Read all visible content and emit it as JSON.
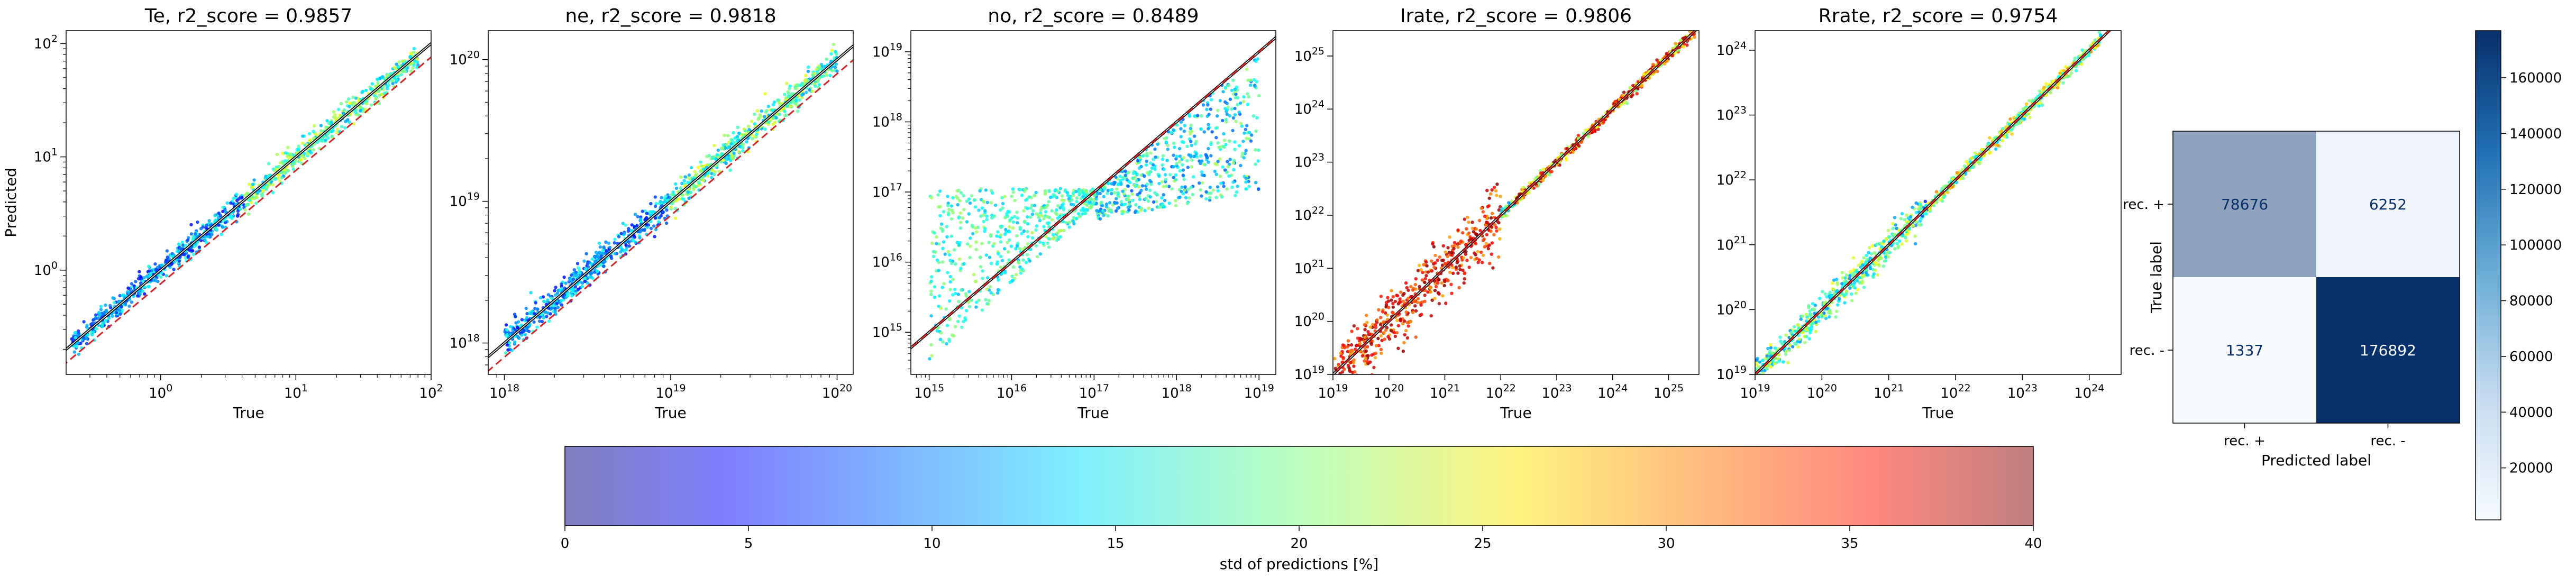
{
  "chart_data": [
    {
      "type": "scatter",
      "title": "Te, r2_score = 0.9857",
      "xlabel": "True",
      "ylabel": "Predicted",
      "xscale": "log",
      "yscale": "log",
      "xlim": [
        0.2,
        100
      ],
      "ylim": [
        0.12,
        130
      ],
      "xticks": [
        {
          "v": 1,
          "b": "10",
          "e": "0"
        },
        {
          "v": 10,
          "b": "10",
          "e": "1"
        },
        {
          "v": 100,
          "b": "10",
          "e": "2"
        }
      ],
      "yticks": [
        {
          "v": 1,
          "b": "10",
          "e": "0"
        },
        {
          "v": 10,
          "b": "10",
          "e": "1"
        },
        {
          "v": 100,
          "b": "10",
          "e": "2"
        }
      ],
      "points_x_range": [
        0.22,
        80
      ],
      "std_range_percent": [
        5,
        25
      ],
      "fit_line": true,
      "reference_line": {
        "style": "dashed",
        "color": "#d62728",
        "y_offset_decades": -0.12
      }
    },
    {
      "type": "scatter",
      "title": "ne, r2_score = 0.9818",
      "xlabel": "True",
      "ylabel": "",
      "xscale": "log",
      "yscale": "log",
      "xlim": [
        8e+17,
        1.25e+20
      ],
      "ylim": [
        6e+17,
        1.6e+20
      ],
      "xticks": [
        {
          "v": 1e+18,
          "b": "10",
          "e": "18"
        },
        {
          "v": 1e+19,
          "b": "10",
          "e": "19"
        },
        {
          "v": 1e+20,
          "b": "10",
          "e": "20"
        }
      ],
      "yticks": [
        {
          "v": 1e+18,
          "b": "10",
          "e": "18"
        },
        {
          "v": 1e+19,
          "b": "10",
          "e": "19"
        },
        {
          "v": 1e+20,
          "b": "10",
          "e": "20"
        }
      ],
      "points_x_range": [
        1e+18,
        1e+20
      ],
      "std_range_percent": [
        5,
        25
      ],
      "fit_line": true,
      "reference_line": {
        "style": "dashed",
        "color": "#d62728",
        "y_offset_decades": -0.1
      }
    },
    {
      "type": "scatter",
      "title": "no, r2_score = 0.8489",
      "xlabel": "True",
      "ylabel": "",
      "xscale": "log",
      "yscale": "log",
      "xlim": [
        600000000000000.0,
        1.6e+19
      ],
      "ylim": [
        250000000000000.0,
        2e+19
      ],
      "xticks": [
        {
          "v": 1000000000000000.0,
          "b": "10",
          "e": "15"
        },
        {
          "v": 1e+16,
          "b": "10",
          "e": "16"
        },
        {
          "v": 1e+17,
          "b": "10",
          "e": "17"
        },
        {
          "v": 1e+18,
          "b": "10",
          "e": "18"
        },
        {
          "v": 1e+19,
          "b": "10",
          "e": "19"
        }
      ],
      "yticks": [
        {
          "v": 1000000000000000.0,
          "b": "10",
          "e": "15"
        },
        {
          "v": 1e+16,
          "b": "10",
          "e": "16"
        },
        {
          "v": 1e+17,
          "b": "10",
          "e": "17"
        },
        {
          "v": 1e+18,
          "b": "10",
          "e": "18"
        },
        {
          "v": 1e+19,
          "b": "10",
          "e": "19"
        }
      ],
      "points_x_range": [
        1000000000000000.0,
        1e+19
      ],
      "std_range_percent": [
        5,
        25
      ],
      "fit_line": true,
      "reference_line": {
        "style": "dashed",
        "color": "#d62728",
        "y_offset_decades": 0
      }
    },
    {
      "type": "scatter",
      "title": "Irate, r2_score = 0.9806",
      "xlabel": "True",
      "ylabel": "",
      "xscale": "log",
      "yscale": "log",
      "xlim": [
        1e+19,
        3.5e+25
      ],
      "ylim": [
        1e+19,
        3e+25
      ],
      "xticks": [
        {
          "v": 1e+19,
          "b": "10",
          "e": "19"
        },
        {
          "v": 1e+20,
          "b": "10",
          "e": "20"
        },
        {
          "v": 1e+21,
          "b": "10",
          "e": "21"
        },
        {
          "v": 1e+22,
          "b": "10",
          "e": "22"
        },
        {
          "v": 1e+23,
          "b": "10",
          "e": "23"
        },
        {
          "v": 1e+24,
          "b": "10",
          "e": "24"
        },
        {
          "v": 1e+25,
          "b": "10",
          "e": "25"
        }
      ],
      "yticks": [
        {
          "v": 1e+19,
          "b": "10",
          "e": "19"
        },
        {
          "v": 1e+20,
          "b": "10",
          "e": "20"
        },
        {
          "v": 1e+21,
          "b": "10",
          "e": "21"
        },
        {
          "v": 1e+22,
          "b": "10",
          "e": "22"
        },
        {
          "v": 1e+23,
          "b": "10",
          "e": "23"
        },
        {
          "v": 1e+24,
          "b": "10",
          "e": "24"
        },
        {
          "v": 1e+25,
          "b": "10",
          "e": "25"
        }
      ],
      "points_x_range": [
        1e+19,
        3e+25
      ],
      "std_range_percent": [
        10,
        40
      ],
      "fit_line": true,
      "reference_line": {
        "style": "dashed",
        "color": "#d62728",
        "y_offset_decades": 0
      }
    },
    {
      "type": "scatter",
      "title": "Rrate, r2_score = 0.9754",
      "xlabel": "True",
      "ylabel": "",
      "xscale": "log",
      "yscale": "log",
      "xlim": [
        1e+19,
        3e+24
      ],
      "ylim": [
        1e+19,
        2e+24
      ],
      "xticks": [
        {
          "v": 1e+19,
          "b": "10",
          "e": "19"
        },
        {
          "v": 1e+20,
          "b": "10",
          "e": "20"
        },
        {
          "v": 1e+21,
          "b": "10",
          "e": "21"
        },
        {
          "v": 1e+22,
          "b": "10",
          "e": "22"
        },
        {
          "v": 1e+23,
          "b": "10",
          "e": "23"
        },
        {
          "v": 1e+24,
          "b": "10",
          "e": "24"
        }
      ],
      "yticks": [
        {
          "v": 1e+19,
          "b": "10",
          "e": "19"
        },
        {
          "v": 1e+20,
          "b": "10",
          "e": "20"
        },
        {
          "v": 1e+21,
          "b": "10",
          "e": "21"
        },
        {
          "v": 1e+22,
          "b": "10",
          "e": "22"
        },
        {
          "v": 1e+23,
          "b": "10",
          "e": "23"
        },
        {
          "v": 1e+24,
          "b": "10",
          "e": "24"
        }
      ],
      "points_x_range": [
        1e+19,
        1.5e+24
      ],
      "std_range_percent": [
        5,
        30
      ],
      "fit_line": true,
      "reference_line": {
        "style": "dashed",
        "color": "#d62728",
        "y_offset_decades": 0
      }
    },
    {
      "type": "heatmap",
      "title": "",
      "xlabel": "Predicted label",
      "ylabel": "True label",
      "x_categories": [
        "rec. +",
        "rec. -"
      ],
      "y_categories": [
        "rec. +",
        "rec. -"
      ],
      "values": [
        [
          78676,
          6252
        ],
        [
          1337,
          176892
        ]
      ],
      "colormap": "Blues",
      "colorbar": {
        "min": 1337,
        "max": 176892,
        "ticks": [
          20000,
          40000,
          60000,
          80000,
          100000,
          120000,
          140000,
          160000
        ]
      }
    }
  ],
  "colorbar": {
    "label": "std of predictions [%]",
    "min": 0,
    "max": 40,
    "ticks": [
      0,
      5,
      10,
      15,
      20,
      25,
      30,
      35,
      40
    ],
    "colormap": "jet",
    "alpha": 0.5
  },
  "colors": {
    "fit_line": "#000000",
    "reference_line": "#d62728",
    "blues_light": "#f7fbff",
    "blues_dark": "#08306b"
  }
}
